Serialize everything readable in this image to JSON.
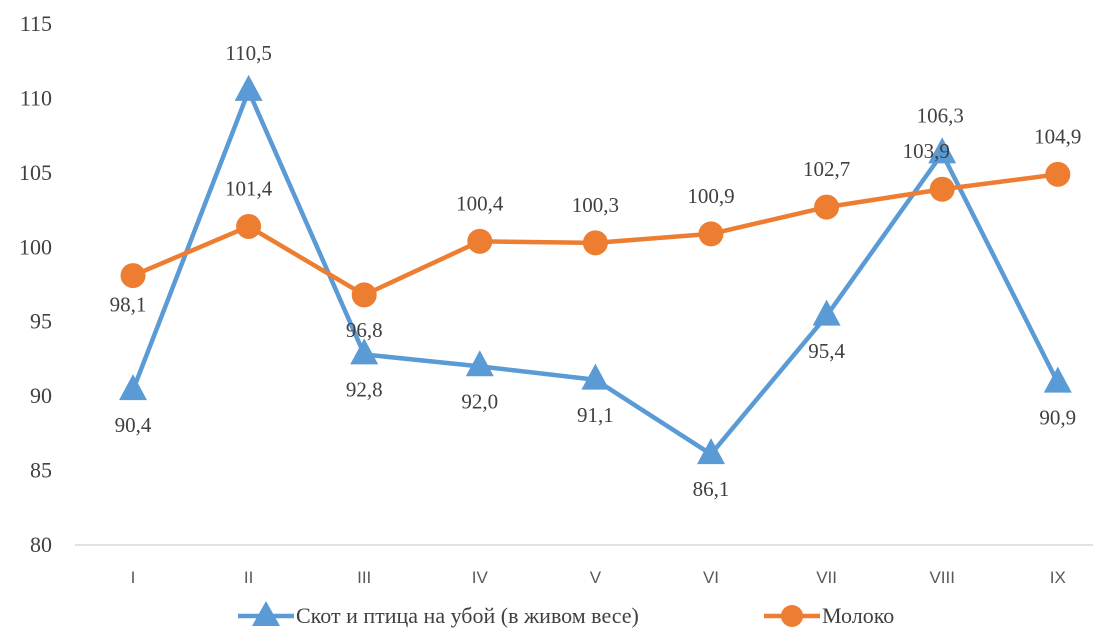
{
  "chart_data": {
    "type": "line",
    "categories": [
      "I",
      "II",
      "III",
      "IV",
      "V",
      "VI",
      "VII",
      "VIII",
      "IX"
    ],
    "ylim": [
      80,
      115
    ],
    "yticks": [
      80,
      85,
      90,
      95,
      100,
      105,
      110,
      115
    ],
    "grid": false,
    "legend_position": "bottom",
    "series": [
      {
        "name": "Скот и птица на убой (в живом весе)",
        "values": [
          90.4,
          110.5,
          92.8,
          92.0,
          91.1,
          86.1,
          95.4,
          106.3,
          90.9
        ],
        "labels": [
          "90,4",
          "110,5",
          "92,8",
          "92,0",
          "91,1",
          "86,1",
          "95,4",
          "106,3",
          "90,9"
        ],
        "color": "#5B9BD5",
        "marker": "triangle"
      },
      {
        "name": "Молоко",
        "values": [
          98.1,
          101.4,
          96.8,
          100.4,
          100.3,
          100.9,
          102.7,
          103.9,
          104.9
        ],
        "labels": [
          "98,1",
          "101,4",
          "96,8",
          "100,4",
          "100,3",
          "100,9",
          "102,7",
          "103,9",
          "104,9"
        ],
        "color": "#ED7D31",
        "marker": "circle"
      }
    ]
  }
}
